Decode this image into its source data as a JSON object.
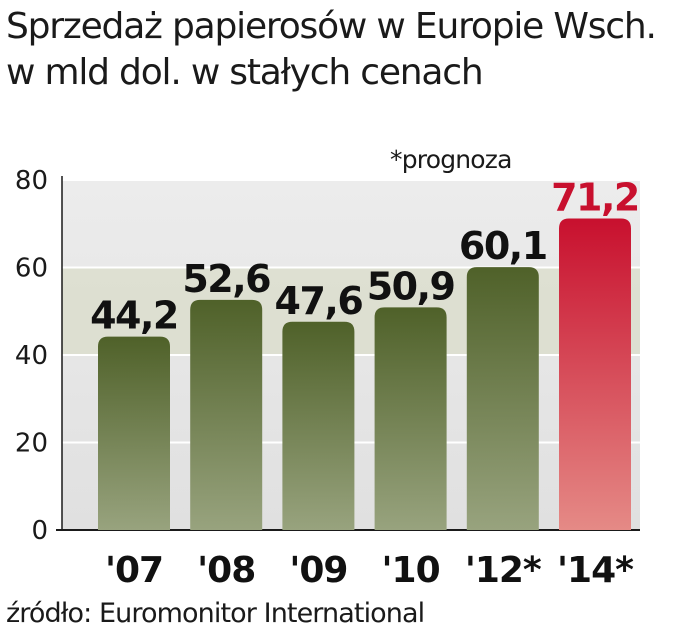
{
  "header": {
    "title_line1": "Sprzedaż papierosów w Europie Wsch.",
    "title_line2": "w mld dol. w stałych cenach"
  },
  "chart_data": {
    "type": "bar",
    "title": "Sprzedaż papierosów w Europie Wsch. w mld dol. w stałych cenach",
    "categories": [
      "'07",
      "'08",
      "'09",
      "'10",
      "'12*",
      "'14*"
    ],
    "values": [
      44.2,
      52.6,
      47.6,
      50.9,
      60.1,
      71.2
    ],
    "value_labels": [
      "44,2",
      "52,6",
      "47,6",
      "50,9",
      "60,1",
      "71,2"
    ],
    "highlight": [
      false,
      false,
      false,
      false,
      false,
      true
    ],
    "ylim": [
      0,
      80
    ],
    "yticks": [
      0,
      20,
      40,
      60,
      80
    ],
    "xlabel": "",
    "ylabel": "",
    "grid": true,
    "annotation": "*prognoza",
    "colors": {
      "bar": "#556b2f",
      "bar_light": "#8c9870",
      "highlight": "#c8102e",
      "highlight_light": "#e07070",
      "highlight_label": "#c8102e",
      "plot_bg": "#e4e4e4",
      "plot_bg_band": "#d9dcc8"
    }
  },
  "footer": {
    "source": "źródło: Euromonitor International"
  }
}
